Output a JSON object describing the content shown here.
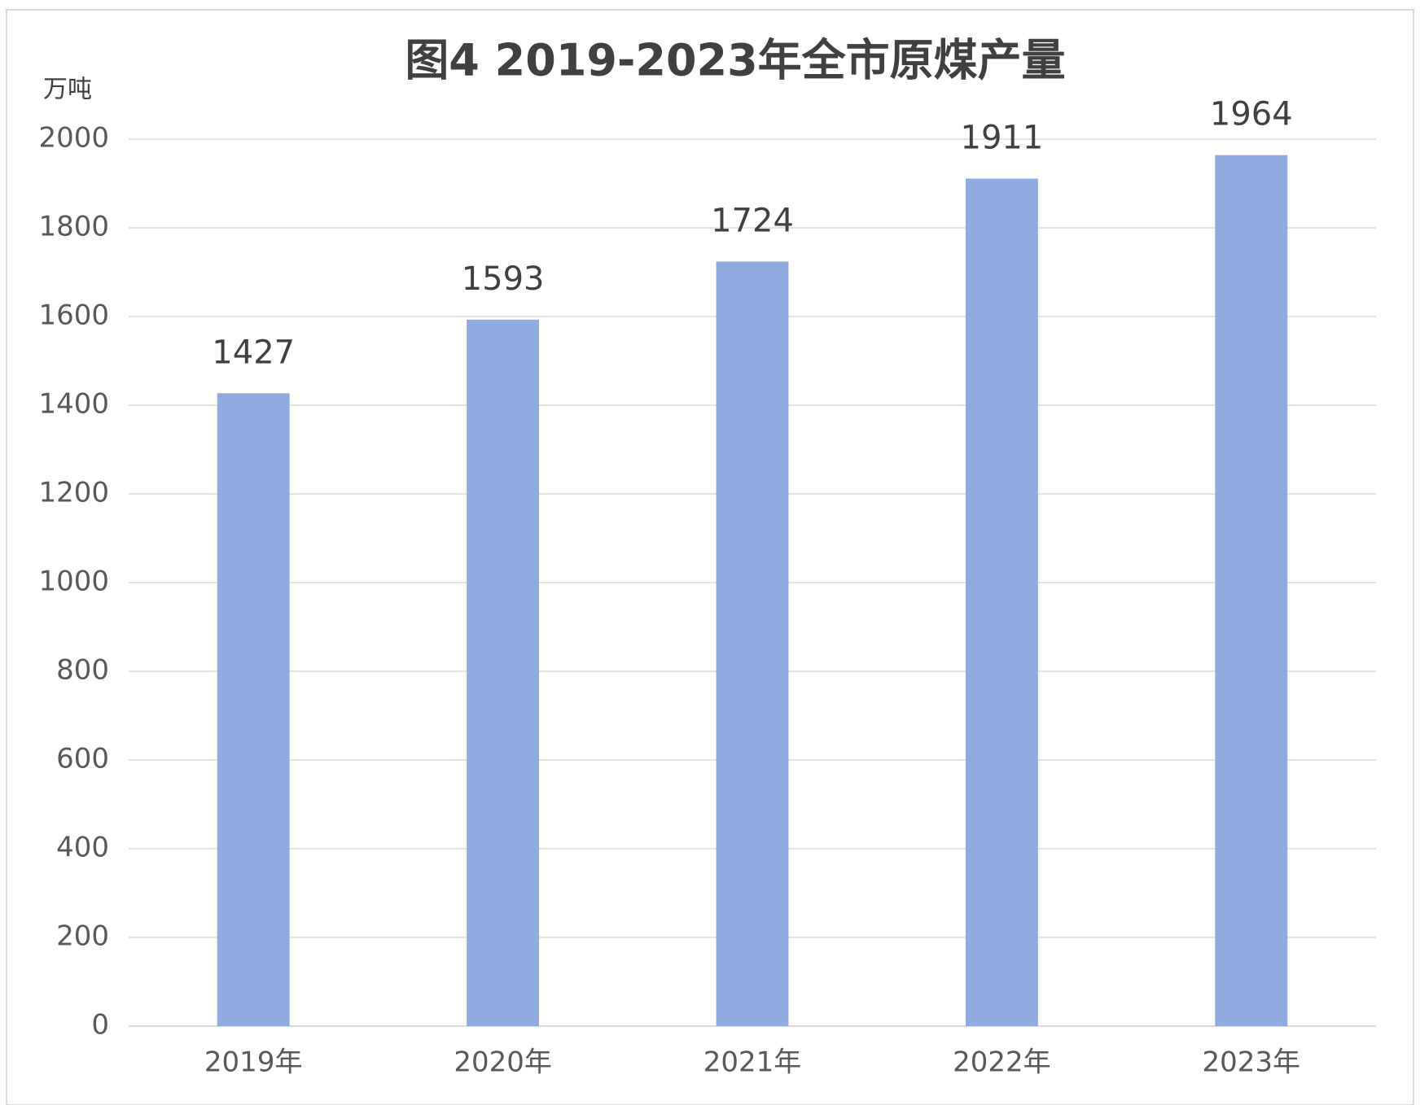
{
  "chart_data": {
    "type": "bar",
    "title": "图4  2019-2023年全市原煤产量",
    "y_label": "万吨",
    "categories": [
      "2019年",
      "2020年",
      "2021年",
      "2022年",
      "2023年"
    ],
    "values": [
      1427,
      1593,
      1724,
      1911,
      1964
    ],
    "color": "#8eaadf",
    "ylim": [
      0,
      2000
    ],
    "yticks": [
      0,
      200,
      400,
      600,
      800,
      1000,
      1200,
      1400,
      1600,
      1800,
      2000
    ],
    "grid": true
  }
}
